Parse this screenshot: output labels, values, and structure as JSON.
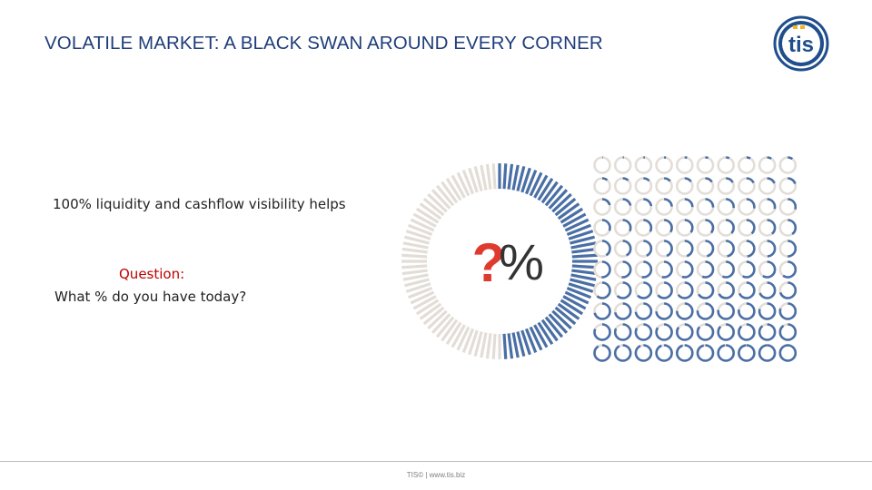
{
  "slide": {
    "title": "VOLATILE MARKET: A BLACK SWAN AROUND EVERY CORNER",
    "statement": "100% liquidity and cashflow visibility helps",
    "question_label": "Question:",
    "question_text": "What % do you have today?"
  },
  "logo": {
    "text": "TIS",
    "colors": {
      "ring": "#1f4e8c",
      "accent": "#f2b41c",
      "base": "#ffffff"
    }
  },
  "infographic": {
    "center_text_q": "?",
    "center_text_pct": "%",
    "ring_fill_percent": 50,
    "colors": {
      "filled": "#4a6fa5",
      "empty": "#e3ddd7",
      "question_mark": "#e03a2f",
      "percent": "#333333"
    }
  },
  "footer": {
    "text": "TIS© | www.tis.biz"
  }
}
